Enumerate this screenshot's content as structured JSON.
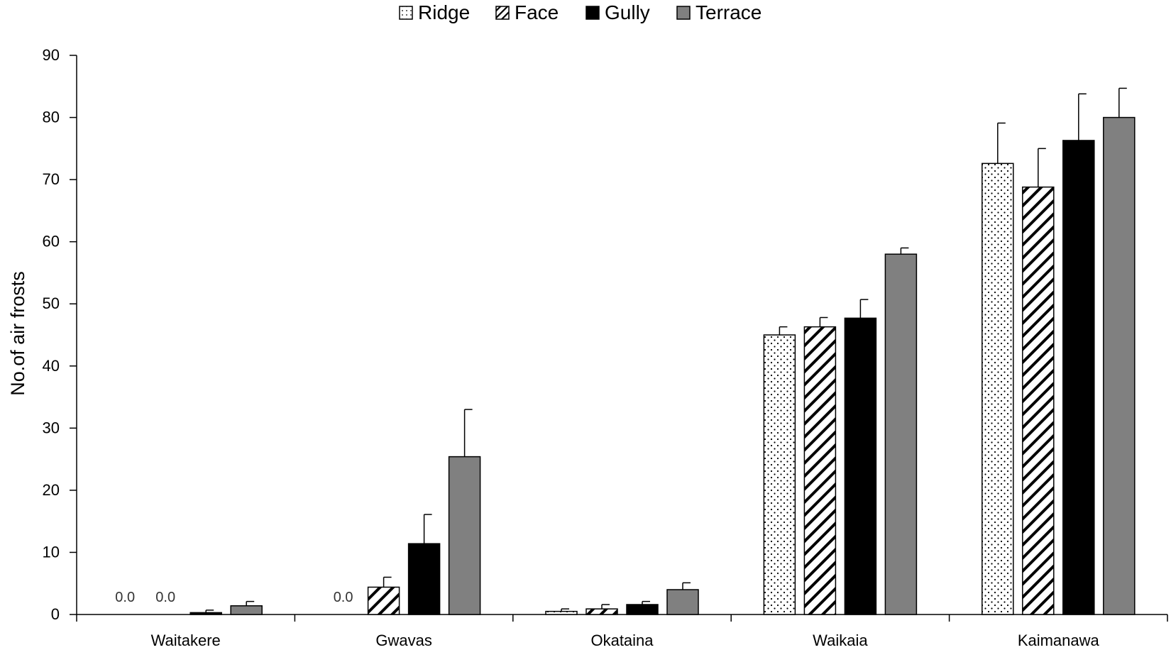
{
  "chart_data": {
    "type": "bar",
    "title": "",
    "xlabel": "",
    "ylabel": "No.of air frosts",
    "ylim": [
      0,
      90
    ],
    "yticks": [
      "0",
      "10",
      "20",
      "30",
      "40",
      "50",
      "60",
      "70",
      "80",
      "90"
    ],
    "grid": false,
    "legend_position": "top-center",
    "categories": [
      "Waitakere",
      "Gwavas",
      "Okataina",
      "Waikaia",
      "Kaimanawa"
    ],
    "series": [
      {
        "name": "Ridge",
        "pattern": "dots",
        "fill": "#ffffff",
        "values": [
          0.0,
          0.0,
          0.5,
          45.0,
          72.6
        ],
        "errors": [
          0,
          0,
          0.4,
          1.3,
          6.5
        ]
      },
      {
        "name": "Face",
        "pattern": "hatch",
        "fill": "#ffffff",
        "values": [
          0.0,
          4.4,
          0.9,
          46.3,
          68.8
        ],
        "errors": [
          0,
          1.6,
          0.7,
          1.5,
          6.2
        ]
      },
      {
        "name": "Gully",
        "pattern": "solid",
        "fill": "#000000",
        "values": [
          0.3,
          11.4,
          1.6,
          47.7,
          76.3
        ],
        "errors": [
          0.4,
          4.7,
          0.5,
          3.0,
          7.5
        ]
      },
      {
        "name": "Terrace",
        "pattern": "solid",
        "fill": "#808080",
        "values": [
          1.4,
          25.4,
          4.0,
          58.0,
          80.0
        ],
        "errors": [
          0.7,
          7.6,
          1.1,
          1.0,
          4.7
        ]
      }
    ],
    "annotations": [
      {
        "category": "Waitakere",
        "series": "Ridge",
        "text": "0.0"
      },
      {
        "category": "Waitakere",
        "series": "Face",
        "text": "0.0"
      },
      {
        "category": "Gwavas",
        "series": "Ridge",
        "text": "0.0"
      }
    ]
  }
}
